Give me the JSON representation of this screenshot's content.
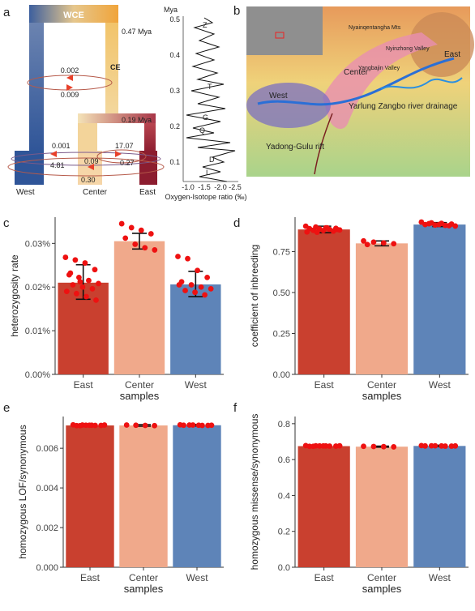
{
  "panel_a": {
    "letter": "a",
    "top_label": "WCE",
    "mid_label": "CE",
    "time_047": "0.47 Mya",
    "time_019": "0.19 Mya",
    "mig_top_up": "0.002",
    "mig_top_down": "0.009",
    "mig_wc_up": "0.001",
    "mig_wc_down": "4.81",
    "mig_ce_up": "17.07",
    "mig_ce_down": "0.27",
    "mig_c_up": "0.09",
    "mig_c_down": "0.30",
    "tips": [
      "West",
      "Center",
      "East"
    ]
  },
  "isotope": {
    "ylabel": "Mya",
    "xlabel": "Oxygen-Isotope ratio (‰)",
    "yticks": [
      "0.5",
      "0.4",
      "0.3",
      "0.2",
      "0.1"
    ],
    "xticks": [
      "-1.0",
      "-1.5",
      "-2.0",
      "-2.5"
    ],
    "markers": [
      "Z",
      "T",
      "G",
      "Q",
      "D",
      "L"
    ]
  },
  "panel_b": {
    "letter": "b",
    "regions": [
      "West",
      "Center",
      "East"
    ],
    "labels": {
      "yarlung": "Yarlung Zangbo river drainage",
      "yadong": "Yadong-Gulu rift",
      "nyainqentangha": "Nyainqentangha Mts",
      "nyinzhong": "Nyinzhong Valley",
      "yangbajin": "Yangbajin Valley"
    }
  },
  "chart_data": [
    {
      "panel": "c",
      "type": "bar",
      "categories": [
        "East",
        "Center",
        "West"
      ],
      "values": [
        0.021,
        0.0305,
        0.0206
      ],
      "err_low": [
        0.0172,
        0.0287,
        0.0178
      ],
      "err_high": [
        0.0251,
        0.0323,
        0.0236
      ],
      "points": [
        [
          0.0268,
          0.0262,
          0.0255,
          0.024,
          0.0228,
          0.0222,
          0.0215,
          0.0208,
          0.0205,
          0.02,
          0.0196,
          0.019,
          0.0185,
          0.0178,
          0.017,
          0.0232,
          0.0212
        ],
        [
          0.0345,
          0.0336,
          0.033,
          0.0322,
          0.0312,
          0.0298,
          0.029,
          0.0285
        ],
        [
          0.027,
          0.0265,
          0.0238,
          0.0222,
          0.0212,
          0.0205,
          0.02,
          0.0196,
          0.0192,
          0.0188,
          0.0182,
          0.0205
        ]
      ],
      "xlabel": "samples",
      "ylabel": "heterozygosity rate",
      "ylim": [
        0,
        0.036
      ],
      "yticks": [
        0,
        0.01,
        0.02,
        0.03
      ],
      "ytick_labels": [
        "0.00%",
        "0.01%",
        "0.02%",
        "0.03%"
      ]
    },
    {
      "panel": "d",
      "type": "bar",
      "categories": [
        "East",
        "Center",
        "West"
      ],
      "values": [
        0.885,
        0.8,
        0.915
      ],
      "err_low": [
        0.865,
        0.785,
        0.903
      ],
      "err_high": [
        0.905,
        0.815,
        0.927
      ],
      "points": [
        [
          0.905,
          0.9,
          0.895,
          0.892,
          0.89,
          0.888,
          0.885,
          0.882,
          0.88,
          0.878,
          0.875,
          0.87,
          0.868,
          0.895,
          0.885
        ],
        [
          0.815,
          0.808,
          0.803,
          0.798,
          0.793
        ],
        [
          0.93,
          0.925,
          0.922,
          0.918,
          0.915,
          0.912,
          0.91,
          0.906,
          0.92,
          0.915,
          0.908
        ]
      ],
      "xlabel": "samples",
      "ylabel": "coefficient of inbreeding",
      "ylim": [
        0,
        0.96
      ],
      "yticks": [
        0,
        0.25,
        0.5,
        0.75
      ],
      "ytick_labels": [
        "0.00",
        "0.25",
        "0.50",
        "0.75"
      ]
    },
    {
      "panel": "e",
      "type": "bar",
      "categories": [
        "East",
        "Center",
        "West"
      ],
      "values": [
        0.00715,
        0.00715,
        0.00716
      ],
      "err_low": [
        0.00711,
        0.00711,
        0.00712
      ],
      "err_high": [
        0.00719,
        0.00719,
        0.0072
      ],
      "points": [
        [
          0.00718,
          0.00717,
          0.00716,
          0.00715,
          0.00714,
          0.00716,
          0.00715,
          0.00717,
          0.00714,
          0.00716
        ],
        [
          0.00717,
          0.00716,
          0.00715,
          0.00714
        ],
        [
          0.00718,
          0.00717,
          0.00716,
          0.00715,
          0.00716,
          0.00717,
          0.00715,
          0.00716
        ]
      ],
      "xlabel": "samples",
      "ylabel": "homozygous LOF/synonymous",
      "ylim": [
        0,
        0.0076
      ],
      "yticks": [
        0,
        0.002,
        0.004,
        0.006
      ],
      "ytick_labels": [
        "0.000",
        "0.002",
        "0.004",
        "0.006"
      ]
    },
    {
      "panel": "f",
      "type": "bar",
      "categories": [
        "East",
        "Center",
        "West"
      ],
      "values": [
        0.675,
        0.672,
        0.676
      ],
      "err_low": [
        0.671,
        0.669,
        0.672
      ],
      "err_high": [
        0.679,
        0.675,
        0.68
      ],
      "points": [
        [
          0.678,
          0.677,
          0.676,
          0.675,
          0.674,
          0.676,
          0.675,
          0.677,
          0.674,
          0.676
        ],
        [
          0.674,
          0.673,
          0.672,
          0.671
        ],
        [
          0.678,
          0.677,
          0.676,
          0.675,
          0.676,
          0.677,
          0.675,
          0.676
        ]
      ],
      "xlabel": "samples",
      "ylabel": "homozygous missense/synonymous",
      "ylim": [
        0,
        0.84
      ],
      "yticks": [
        0,
        0.2,
        0.4,
        0.6,
        0.8
      ],
      "ytick_labels": [
        "0.0",
        "0.2",
        "0.4",
        "0.6",
        "0.8"
      ]
    }
  ],
  "colors": {
    "east": "#c9402f",
    "center": "#f0a98b",
    "west": "#5e84b8",
    "point": "#ee1111"
  }
}
